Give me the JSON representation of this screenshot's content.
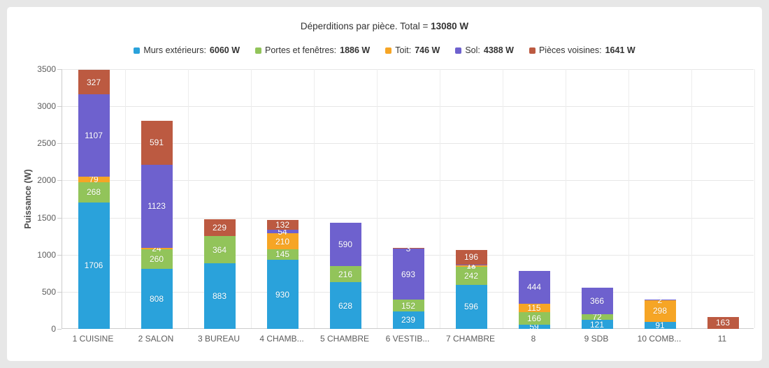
{
  "title": {
    "prefix": "Déperditions par pièce. Total = ",
    "total": "13080 W"
  },
  "chart_data": {
    "type": "stacked-bar",
    "title": "Déperditions par pièce. Total = 13080 W",
    "ylabel": "Puissance (W)",
    "ylim": [
      0,
      3500
    ],
    "ytick_step": 500,
    "grid": true,
    "legend_position": "top",
    "categories": [
      "1 CUISINE",
      "2 SALON",
      "3 BUREAU",
      "4 CHAMB...",
      "5 CHAMBRE",
      "6 VESTIB...",
      "7 CHAMBRE",
      "8",
      "9 SDB",
      "10 COMB...",
      "11"
    ],
    "series": [
      {
        "name": "Murs extérieurs",
        "total": "6060 W",
        "color": "#2aa2db",
        "values": [
          1706,
          808,
          883,
          930,
          628,
          239,
          596,
          59,
          121,
          91,
          0
        ]
      },
      {
        "name": "Portes et fenêtres",
        "total": "1886 W",
        "color": "#92c45a",
        "values": [
          268,
          260,
          364,
          145,
          216,
          152,
          242,
          166,
          72,
          0,
          0
        ]
      },
      {
        "name": "Toit",
        "total": "746 W",
        "color": "#f6a525",
        "values": [
          79,
          24,
          0,
          210,
          0,
          0,
          18,
          115,
          0,
          298,
          0
        ]
      },
      {
        "name": "Sol",
        "total": "4388 W",
        "color": "#6e61ce",
        "values": [
          1107,
          1123,
          0,
          54,
          590,
          693,
          11,
          444,
          366,
          2,
          0
        ]
      },
      {
        "name": "Pièces voisines",
        "total": "1641 W",
        "color": "#bc5a41",
        "values": [
          327,
          591,
          229,
          132,
          0,
          3,
          196,
          0,
          0,
          0,
          163
        ]
      }
    ]
  }
}
